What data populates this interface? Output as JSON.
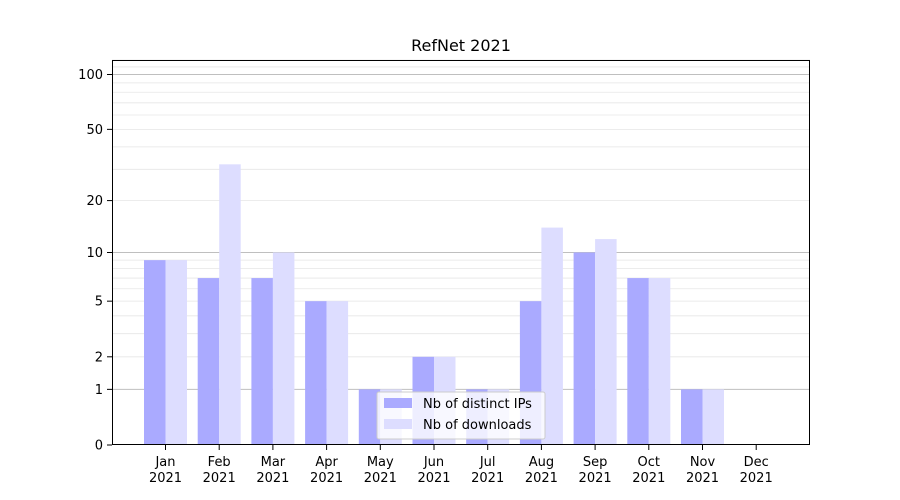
{
  "chart_data": {
    "type": "bar",
    "title": "RefNet 2021",
    "xlabel": "",
    "ylabel": "",
    "y_scale": "log(1+y)",
    "ylim": [
      0,
      120
    ],
    "y_ticks": [
      0,
      1,
      2,
      5,
      10,
      20,
      50,
      100
    ],
    "categories": [
      [
        "Jan",
        "2021"
      ],
      [
        "Feb",
        "2021"
      ],
      [
        "Mar",
        "2021"
      ],
      [
        "Apr",
        "2021"
      ],
      [
        "May",
        "2021"
      ],
      [
        "Jun",
        "2021"
      ],
      [
        "Jul",
        "2021"
      ],
      [
        "Aug",
        "2021"
      ],
      [
        "Sep",
        "2021"
      ],
      [
        "Oct",
        "2021"
      ],
      [
        "Nov",
        "2021"
      ],
      [
        "Dec",
        "2021"
      ]
    ],
    "series": [
      {
        "name": "Nb of distinct IPs",
        "color": "#aaaaff",
        "values": [
          9,
          7,
          7,
          5,
          1,
          2,
          1,
          5,
          10,
          7,
          1,
          0
        ]
      },
      {
        "name": "Nb of downloads",
        "color": "#ddddff",
        "values": [
          9,
          32,
          10,
          5,
          1,
          2,
          1,
          14,
          12,
          7,
          1,
          0
        ]
      }
    ],
    "grid": "horizontal",
    "legend": "bottom-center"
  }
}
